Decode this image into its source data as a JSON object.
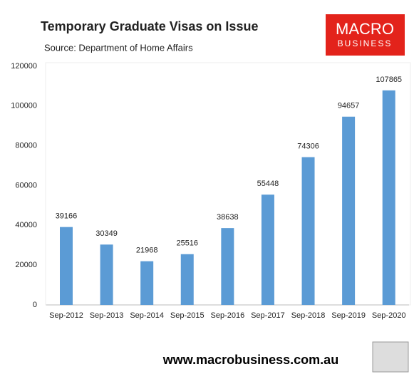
{
  "chart_data": {
    "type": "bar",
    "title": "Temporary Graduate Visas on Issue",
    "subtitle": "Source: Department of Home Affairs",
    "annotations": [
      "MACRO",
      "BUSINESS",
      "www.macrobusiness.com.au"
    ],
    "categories": [
      "Sep-2012",
      "Sep-2013",
      "Sep-2014",
      "Sep-2015",
      "Sep-2016",
      "Sep-2017",
      "Sep-2018",
      "Sep-2019",
      "Sep-2020"
    ],
    "values": [
      39166,
      30349,
      21968,
      25516,
      38638,
      55448,
      74306,
      94657,
      107865
    ],
    "color": "#5b9bd5",
    "ylim": [
      0,
      120000
    ],
    "yticks": [
      0,
      20000,
      40000,
      60000,
      80000,
      100000,
      120000
    ],
    "grid": false
  }
}
